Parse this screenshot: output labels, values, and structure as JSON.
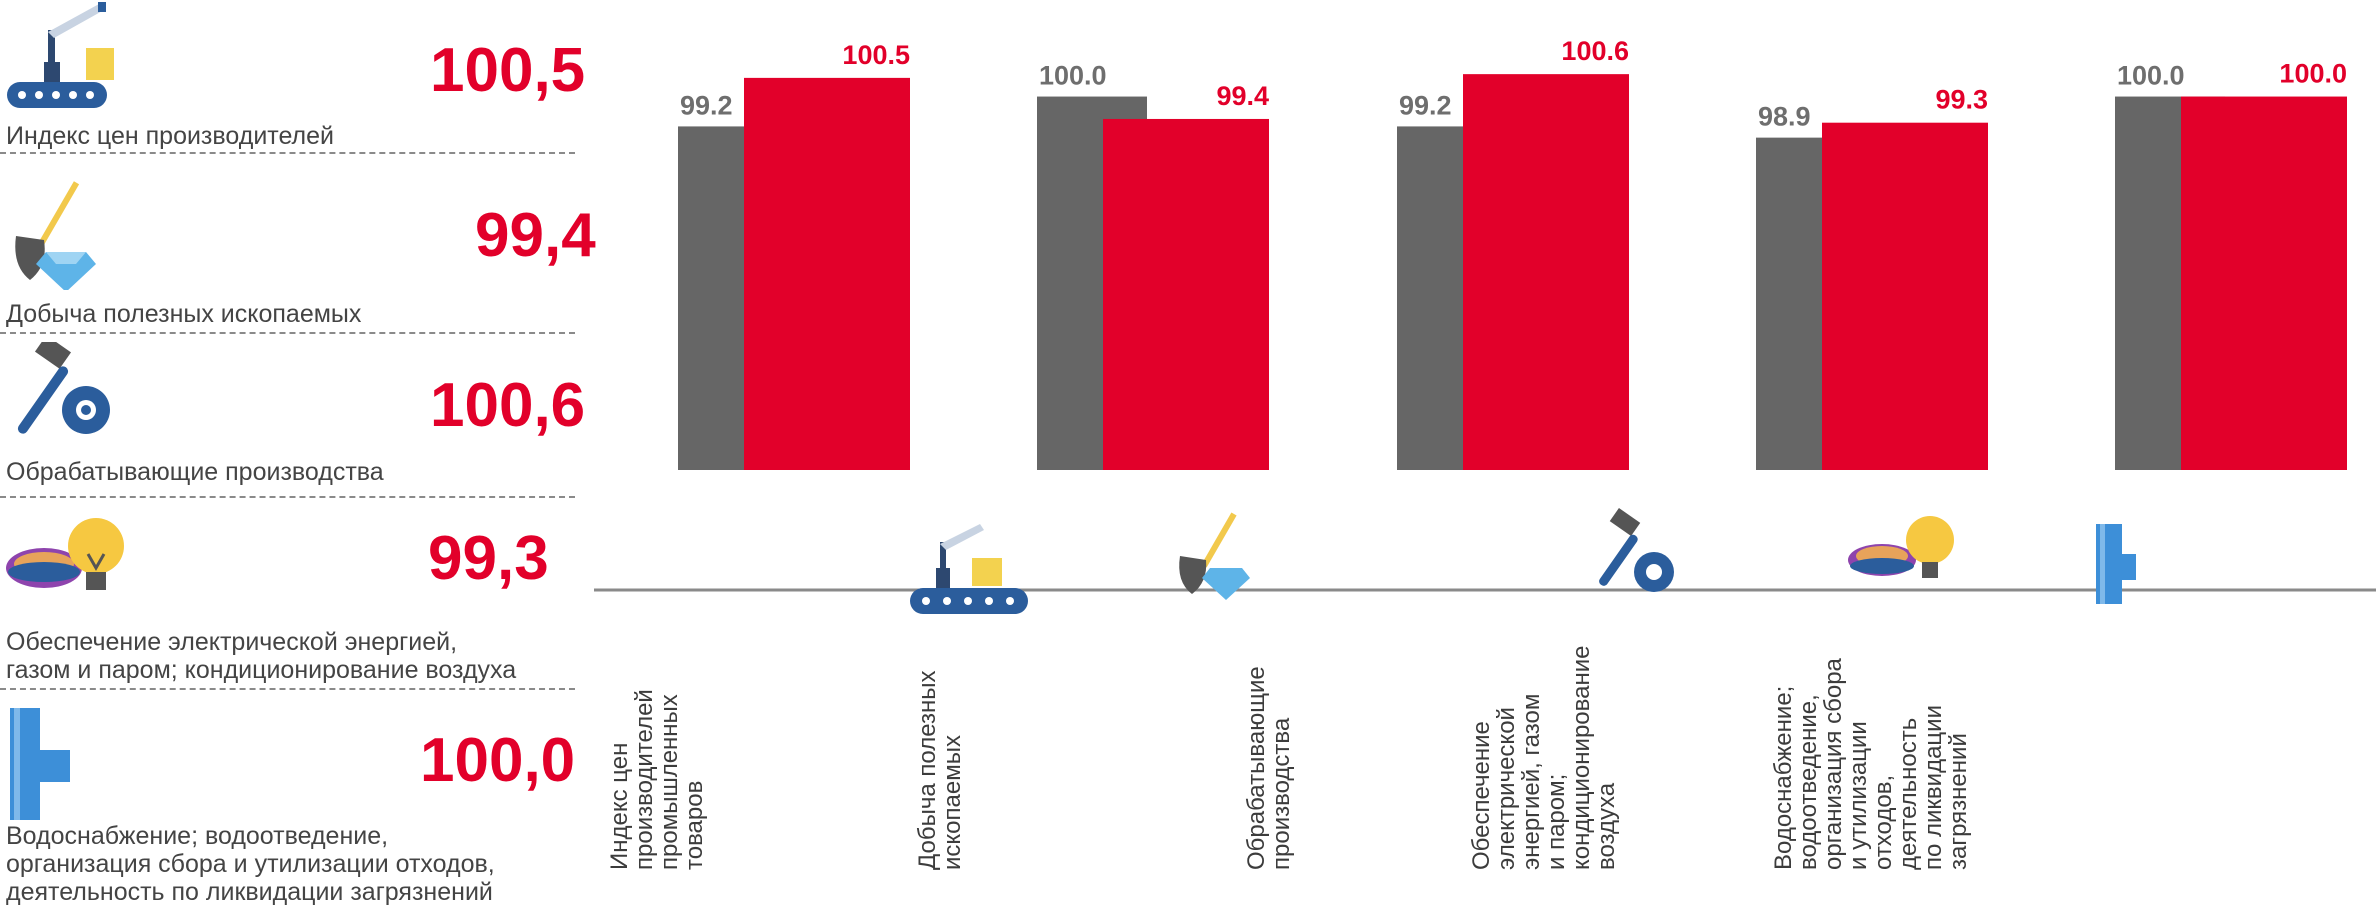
{
  "panel": {
    "items": [
      {
        "value": "100,5",
        "label": "Индекс цен производителей",
        "icon": "conveyor-icon"
      },
      {
        "value": "99,4",
        "label": "Добыча полезных ископаемых",
        "icon": "shovel-diamond-icon"
      },
      {
        "value": "100,6",
        "label": "Обрабатывающие производства",
        "icon": "hammer-gear-icon"
      },
      {
        "value": "99,3",
        "label": "Обеспечение электрической энергией,\nгазом и паром; кондиционирование воздуха",
        "icon": "gas-burner-bulb-icon"
      },
      {
        "value": "100,0",
        "label": "Водоснабжение; водоотведение,\nорганизация сбора и утилизации отходов,\nдеятельность по ликвидации загрязнений",
        "icon": "water-pipe-icon"
      }
    ]
  },
  "colors": {
    "grey": "#666666",
    "red": "#e2002a",
    "value_grey": "#6e6e6e"
  },
  "chart_data": {
    "type": "bar",
    "categories": [
      "Индекс цен производителей промышленных товаров",
      "Добыча полезных ископаемых",
      "Обрабатывающие производства",
      "Обеспечение электрической энергией, газом и паром; кондиционирование воздуха",
      "Водоснабжение; водоотведение, организация сбора и утилизации отходов, деятельность по ликвидации загрязнений"
    ],
    "category_lines": [
      [
        "Индекс цен",
        "производителей",
        "промышленных",
        "товаров"
      ],
      [
        "Добыча полезных",
        "ископаемых"
      ],
      [
        "Обрабатывающие",
        "производства"
      ],
      [
        "Обеспечение",
        "электрической",
        "энергией, газом",
        "и паром;",
        "кондиционирование",
        "воздуха"
      ],
      [
        "Водоснабжение;",
        "водоотведение,",
        "организация сбора",
        "и утилизации",
        "отходов,",
        "деятельность",
        "по ликвидации",
        "загрязнений"
      ]
    ],
    "category_icons": [
      "conveyor-icon",
      "shovel-diamond-icon",
      "hammer-gear-icon",
      "gas-burner-bulb-icon",
      "water-pipe-icon"
    ],
    "series": [
      {
        "values": [
          99.2,
          100.0,
          99.2,
          98.9,
          100.0
        ],
        "labels": [
          "99.2",
          "100.0",
          "99.2",
          "98.9",
          "100.0"
        ],
        "color": "#666666"
      },
      {
        "values": [
          100.5,
          99.4,
          100.6,
          99.3,
          100.0
        ],
        "labels": [
          "100.5",
          "99.4",
          "100.6",
          "99.3",
          "100.0"
        ],
        "color": "#e2002a"
      }
    ],
    "ylim": [
      90,
      101.3
    ],
    "grid": false,
    "legend": "none"
  }
}
